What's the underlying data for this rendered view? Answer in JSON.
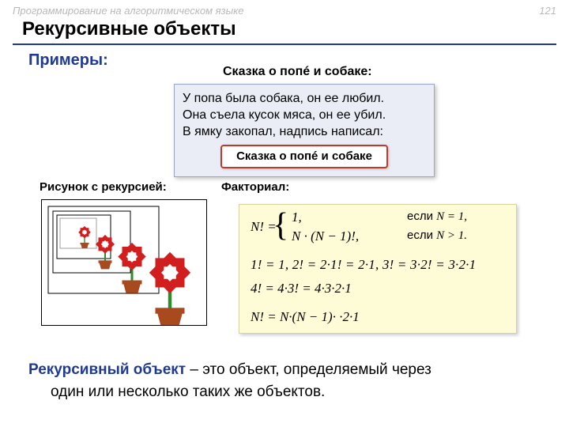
{
  "header": {
    "course": "Программирование на алгоритмическом языке",
    "page": "121"
  },
  "title": "Рекурсивные объекты",
  "examples_label": "Примеры:",
  "tale": {
    "title": "Сказка о попé и собаке:",
    "line1": "У попа была собака, он ее любил.",
    "line2": "Она съела кусок мяса, он ее убил.",
    "line3": "В ямку закопал, надпись написал:",
    "inner": "Сказка о попé и собаке"
  },
  "pic_label": "Рисунок с рекурсией:",
  "factorial": {
    "label": "Факториал:",
    "neq": "N! =",
    "line1": "1,",
    "cond1_label": "если",
    "cond1": "N = 1,",
    "line2": "N · (N − 1)!,",
    "cond2_label": "если",
    "cond2": "N > 1.",
    "ex1": "1! = 1,   2! = 2·1! = 2·1,   3! = 3·2! = 3·2·1",
    "ex2": "4! = 4·3! = 4·3·2·1",
    "exN": "N! = N·(N − 1)·  ·2·1"
  },
  "definition": {
    "term": "Рекурсивный объект",
    "rest1": " – это объект, определяемый через",
    "rest2": "один или несколько таких же объектов."
  },
  "colors": {
    "accent": "#1f3a93",
    "flower_red": "#d11f1f",
    "flower_center": "#ffffff",
    "pot": "#a84a1e",
    "stem": "#2e8b2e"
  }
}
